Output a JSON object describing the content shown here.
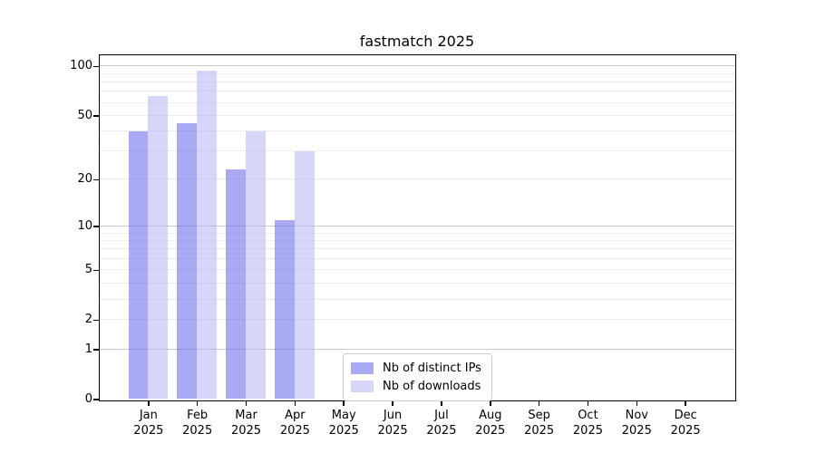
{
  "title": "fastmatch 2025",
  "colors": {
    "ips": "rgba(103,103,236,0.56)",
    "downloads": "rgba(173,173,243,0.50)",
    "grid_minor": "#ececec",
    "grid_major": "#c9c9c9",
    "spine": "#000000",
    "legend_border": "#cccccc"
  },
  "y_axis": {
    "ticks": [
      100,
      50,
      20,
      10,
      5,
      2,
      1,
      0
    ],
    "tick_labels": [
      "100",
      "50",
      "20",
      "10",
      "5",
      "2",
      "1",
      "0"
    ]
  },
  "x_axis": {
    "months": [
      "Jan",
      "Feb",
      "Mar",
      "Apr",
      "May",
      "Jun",
      "Jul",
      "Aug",
      "Sep",
      "Oct",
      "Nov",
      "Dec"
    ],
    "year": "2025"
  },
  "legend": {
    "items": [
      {
        "label": "Nb of distinct IPs",
        "color_key": "ips"
      },
      {
        "label": "Nb of downloads",
        "color_key": "downloads"
      }
    ]
  },
  "chart_data": {
    "type": "bar",
    "title": "fastmatch 2025",
    "categories": [
      "Jan 2025",
      "Feb 2025",
      "Mar 2025",
      "Apr 2025",
      "May 2025",
      "Jun 2025",
      "Jul 2025",
      "Aug 2025",
      "Sep 2025",
      "Oct 2025",
      "Nov 2025",
      "Dec 2025"
    ],
    "series": [
      {
        "name": "Nb of distinct IPs",
        "values": [
          40,
          45,
          23,
          11,
          0,
          0,
          0,
          0,
          0,
          0,
          0,
          0
        ]
      },
      {
        "name": "Nb of downloads",
        "values": [
          66,
          94,
          40,
          30,
          0,
          0,
          0,
          0,
          0,
          0,
          0,
          0
        ]
      }
    ],
    "xlabel": "",
    "ylabel": "",
    "yscale": "log10(1+x)",
    "ylim": [
      0,
      117
    ],
    "yticks": [
      0,
      1,
      2,
      5,
      10,
      20,
      50,
      100
    ],
    "gridlines": {
      "major": [
        1,
        10,
        100
      ],
      "minor": [
        2,
        3,
        4,
        5,
        6,
        7,
        8,
        9,
        20,
        30,
        40,
        50,
        60,
        70,
        80,
        90
      ]
    },
    "grid": true,
    "legend_position": "lower center"
  }
}
